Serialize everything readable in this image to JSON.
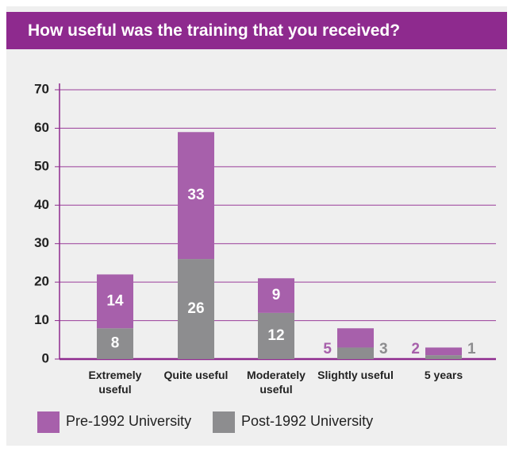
{
  "chart_data": {
    "type": "stacked_bar",
    "title": "How useful was the training that you received?",
    "categories": [
      "Extremely useful",
      "Quite useful",
      "Moderately useful",
      "Slightly useful",
      "5 years"
    ],
    "series": [
      {
        "name": "Post-1992 University",
        "color": "#8d8d8f",
        "values": [
          8,
          26,
          12,
          3,
          1
        ]
      },
      {
        "name": "Pre-1992 University",
        "color": "#a760ab",
        "values": [
          14,
          33,
          9,
          5,
          2
        ]
      }
    ],
    "ylim": [
      0,
      70
    ],
    "yticks": [
      0,
      10,
      20,
      30,
      40,
      50,
      60,
      70
    ],
    "grid": true
  }
}
